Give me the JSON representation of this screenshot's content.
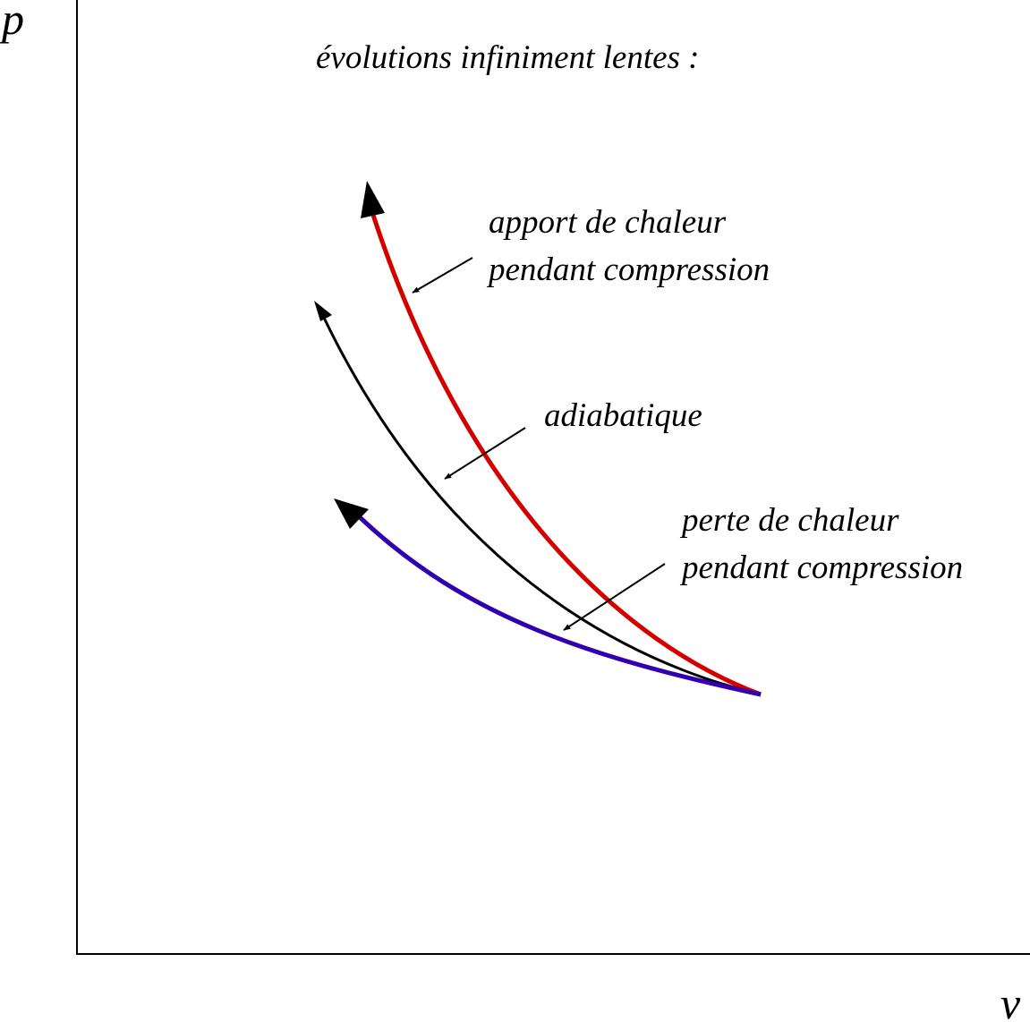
{
  "diagram": {
    "title": "évolutions infiniment lentes :",
    "axes": {
      "y_label": "p",
      "x_label": "v"
    },
    "curves": [
      {
        "id": "heat-gain",
        "label_lines": [
          "apport de chaleur",
          "pendant compression"
        ],
        "color": "#d40000"
      },
      {
        "id": "adiabatic",
        "label_lines": [
          "adiabatique"
        ],
        "color": "#000000"
      },
      {
        "id": "heat-loss",
        "label_lines": [
          "perte de chaleur",
          "pendant compression"
        ],
        "color": "#3000b0"
      }
    ]
  }
}
